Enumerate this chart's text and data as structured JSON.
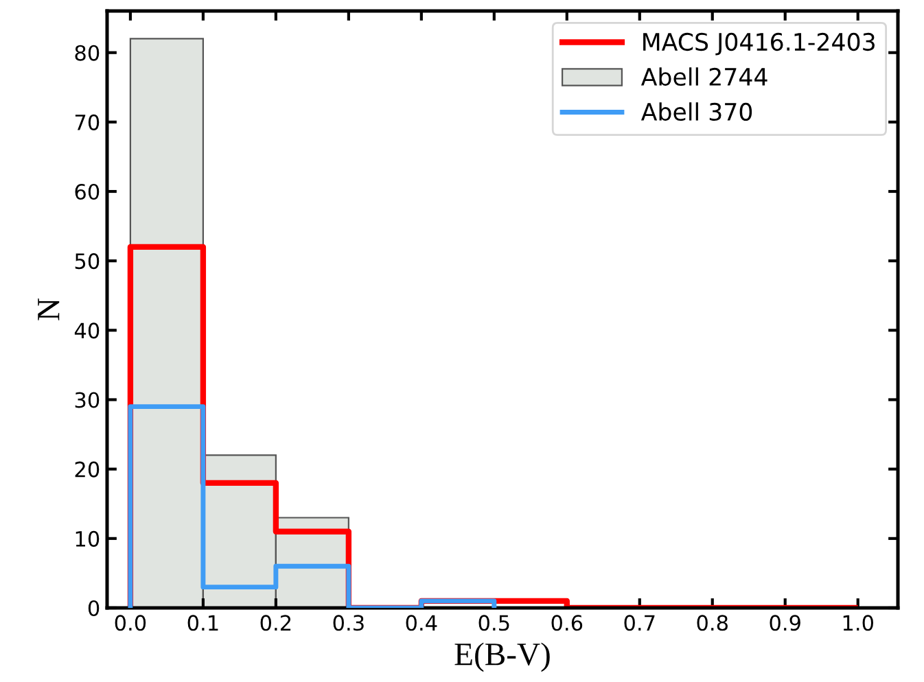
{
  "chart_data": {
    "type": "histogram",
    "xlabel": "E(B-V)",
    "ylabel": "N",
    "bins": [
      0.0,
      0.1,
      0.2,
      0.3,
      0.4,
      0.5,
      0.6,
      0.7,
      0.8,
      0.9,
      1.0
    ],
    "series": [
      {
        "name": "Abell 2744",
        "color": "#e0e4e0",
        "bins": [
          0.0,
          0.1,
          0.2,
          0.3
        ],
        "values": [
          82,
          22,
          13
        ]
      },
      {
        "name": "MACS J0416.1-2403",
        "color": "#ff0000",
        "values": [
          52,
          18,
          11,
          0,
          1,
          1,
          0,
          0,
          0,
          0
        ]
      },
      {
        "name": "Abell 370",
        "color": "#3f9cf5",
        "bins": [
          0.0,
          0.1,
          0.2,
          0.3,
          0.4,
          0.5
        ],
        "values": [
          29,
          3,
          6,
          0,
          1
        ]
      }
    ],
    "xlim": [
      -0.032,
      1.055
    ],
    "ylim": [
      0,
      86
    ],
    "xticks": [
      {
        "value": 0.0,
        "label": "0.0"
      },
      {
        "value": 0.1,
        "label": "0.1"
      },
      {
        "value": 0.2,
        "label": "0.2"
      },
      {
        "value": 0.3,
        "label": "0.3"
      },
      {
        "value": 0.4,
        "label": "0.4"
      },
      {
        "value": 0.5,
        "label": "0.5"
      },
      {
        "value": 0.6,
        "label": "0.6"
      },
      {
        "value": 0.7,
        "label": "0.7"
      },
      {
        "value": 0.8,
        "label": "0.8"
      },
      {
        "value": 0.9,
        "label": "0.9"
      },
      {
        "value": 1.0,
        "label": "1.0"
      }
    ],
    "yticks": [
      0,
      10,
      20,
      30,
      40,
      50,
      60,
      70,
      80
    ],
    "grid": false,
    "legend": "top right"
  }
}
